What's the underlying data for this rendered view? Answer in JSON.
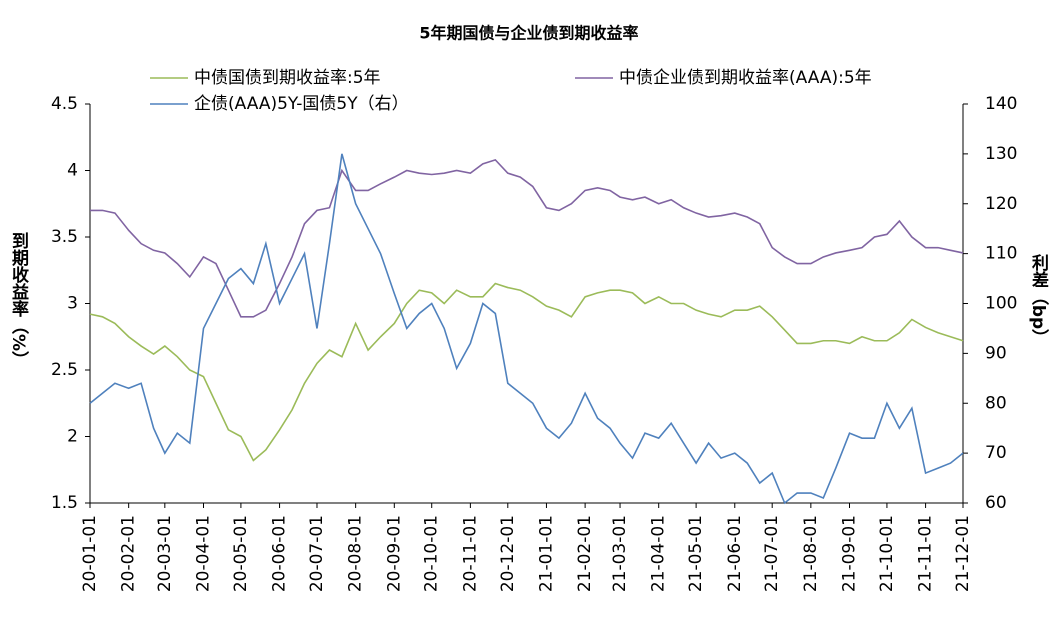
{
  "chart_data": {
    "type": "line",
    "title": "5年期国债与企业债到期收益率",
    "y_label": "到期收益率（%）",
    "y2_label": "利差（bp）",
    "x": [
      "20-01-01",
      "20-01-11",
      "20-01-21",
      "20-02-01",
      "20-02-11",
      "20-02-21",
      "20-03-01",
      "20-03-11",
      "20-03-21",
      "20-04-01",
      "20-04-11",
      "20-04-21",
      "20-05-01",
      "20-05-11",
      "20-05-21",
      "20-06-01",
      "20-06-11",
      "20-06-21",
      "20-07-01",
      "20-07-11",
      "20-07-21",
      "20-08-01",
      "20-08-11",
      "20-08-21",
      "20-09-01",
      "20-09-11",
      "20-09-21",
      "20-10-01",
      "20-10-11",
      "20-10-21",
      "20-11-01",
      "20-11-11",
      "20-11-21",
      "20-12-01",
      "20-12-11",
      "20-12-21",
      "21-01-01",
      "21-01-11",
      "21-01-21",
      "21-02-01",
      "21-02-11",
      "21-02-21",
      "21-03-01",
      "21-03-11",
      "21-03-21",
      "21-04-01",
      "21-04-11",
      "21-04-21",
      "21-05-01",
      "21-05-11",
      "21-05-21",
      "21-06-01",
      "21-06-11",
      "21-06-21",
      "21-07-01",
      "21-07-11",
      "21-07-21",
      "21-08-01",
      "21-08-11",
      "21-08-21",
      "21-09-01",
      "21-09-11",
      "21-09-21",
      "21-10-01",
      "21-10-11",
      "21-10-21",
      "21-11-01",
      "21-11-11",
      "21-11-21",
      "21-12-01"
    ],
    "series": [
      {
        "name": "中债国债到期收益率:5年",
        "color": "#9bbb59",
        "values": [
          2.92,
          2.9,
          2.85,
          2.75,
          2.68,
          2.62,
          2.68,
          2.6,
          2.5,
          2.45,
          2.25,
          2.05,
          2.0,
          1.82,
          1.9,
          2.05,
          2.2,
          2.4,
          2.55,
          2.65,
          2.6,
          2.85,
          2.65,
          2.75,
          2.85,
          3.0,
          3.1,
          3.08,
          3.0,
          3.1,
          3.05,
          3.05,
          3.15,
          3.12,
          3.1,
          3.05,
          2.98,
          2.95,
          2.9,
          3.05,
          3.08,
          3.1,
          3.1,
          3.08,
          3.0,
          3.05,
          3.0,
          3.0,
          2.95,
          2.92,
          2.9,
          2.95,
          2.95,
          2.98,
          2.9,
          2.8,
          2.7,
          2.7,
          2.72,
          2.72,
          2.7,
          2.75,
          2.72,
          2.72,
          2.78,
          2.88,
          2.82,
          2.78,
          2.75,
          2.72
        ]
      },
      {
        "name": "中债企业债到期收益率(AAA):5年",
        "color": "#8064a2",
        "values": [
          3.7,
          3.7,
          3.68,
          3.55,
          3.45,
          3.4,
          3.38,
          3.3,
          3.2,
          3.35,
          3.3,
          3.1,
          2.9,
          2.9,
          2.95,
          3.15,
          3.35,
          3.6,
          3.7,
          3.72,
          4.0,
          3.85,
          3.85,
          3.9,
          3.95,
          4.0,
          3.98,
          3.97,
          3.98,
          4.0,
          3.98,
          4.05,
          4.08,
          3.98,
          3.95,
          3.88,
          3.72,
          3.7,
          3.75,
          3.85,
          3.87,
          3.85,
          3.8,
          3.78,
          3.8,
          3.75,
          3.78,
          3.72,
          3.68,
          3.65,
          3.66,
          3.68,
          3.65,
          3.6,
          3.42,
          3.35,
          3.3,
          3.3,
          3.35,
          3.38,
          3.4,
          3.42,
          3.5,
          3.52,
          3.62,
          3.5,
          3.42,
          3.42,
          3.4,
          3.38
        ]
      },
      {
        "name": "企债(AAA)5Y-国债5Y（右）",
        "color": "#4f81bd",
        "axis": "y2",
        "values": [
          80,
          82,
          84,
          83,
          84,
          75,
          70,
          74,
          72,
          95,
          100,
          105,
          107,
          104,
          112,
          100,
          105,
          110,
          95,
          112,
          130,
          120,
          115,
          110,
          102,
          95,
          98,
          100,
          95,
          87,
          92,
          100,
          98,
          84,
          82,
          80,
          75,
          73,
          76,
          82,
          77,
          75,
          72,
          69,
          74,
          73,
          76,
          72,
          68,
          72,
          69,
          70,
          68,
          64,
          66,
          60,
          62,
          62,
          61,
          67,
          74,
          73,
          73,
          80,
          75,
          79,
          66,
          67,
          68,
          70
        ]
      }
    ],
    "xlim": [
      "20-01-01",
      "21-12-01"
    ],
    "xticks": [
      "20-01-01",
      "20-02-01",
      "20-03-01",
      "20-04-01",
      "20-05-01",
      "20-06-01",
      "20-07-01",
      "20-08-01",
      "20-09-01",
      "20-10-01",
      "20-11-01",
      "20-12-01",
      "21-01-01",
      "21-02-01",
      "21-03-01",
      "21-04-01",
      "21-05-01",
      "21-06-01",
      "21-07-01",
      "21-08-01",
      "21-09-01",
      "21-10-01",
      "21-11-01",
      "21-12-01"
    ],
    "ylim": [
      1.5,
      4.5
    ],
    "yticks": [
      1.5,
      2,
      2.5,
      3,
      3.5,
      4,
      4.5
    ],
    "y2lim": [
      60,
      140
    ],
    "y2ticks": [
      60,
      70,
      80,
      90,
      100,
      110,
      120,
      130,
      140
    ],
    "grid": false
  }
}
